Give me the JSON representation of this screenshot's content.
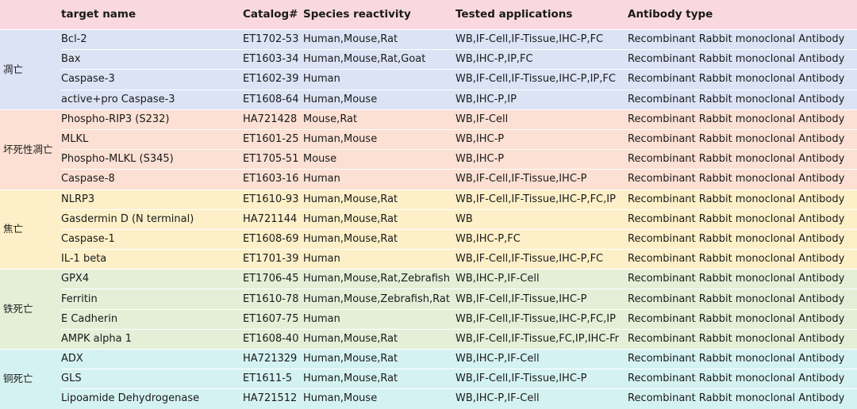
{
  "headers": [
    "",
    "target name",
    "Catalog#",
    "Species reactivity",
    "Tested applications",
    "Antibody type"
  ],
  "colors": {
    "header": "#f9d9df",
    "groups": [
      "#dbe3f5",
      "#fbe0d3",
      "#fdf0c8",
      "#e4efd8",
      "#d5f2f2"
    ]
  },
  "groups": [
    {
      "name": "凋亡",
      "rows": [
        [
          "Bcl-2",
          "ET1702-53",
          "Human,Mouse,Rat",
          "WB,IF-Cell,IF-Tissue,IHC-P,FC",
          "Recombinant Rabbit monoclonal Antibody"
        ],
        [
          "Bax",
          "ET1603-34",
          "Human,Mouse,Rat,Goat",
          "WB,IHC-P,IP,FC",
          "Recombinant Rabbit monoclonal Antibody"
        ],
        [
          "Caspase-3",
          "ET1602-39",
          "Human",
          "WB,IF-Cell,IF-Tissue,IHC-P,IP,FC",
          "Recombinant Rabbit monoclonal Antibody"
        ],
        [
          "active+pro Caspase-3",
          "ET1608-64",
          "Human,Mouse",
          "WB,IHC-P,IP",
          "Recombinant Rabbit monoclonal Antibody"
        ]
      ]
    },
    {
      "name": "坏死性凋亡",
      "rows": [
        [
          "Phospho-RIP3 (S232)",
          "HA721428",
          "Mouse,Rat",
          "WB,IF-Cell",
          "Recombinant Rabbit monoclonal Antibody"
        ],
        [
          "MLKL",
          "ET1601-25",
          "Human,Mouse",
          "WB,IHC-P",
          "Recombinant Rabbit monoclonal Antibody"
        ],
        [
          "Phospho-MLKL (S345)",
          "ET1705-51",
          "Mouse",
          "WB,IHC-P",
          "Recombinant Rabbit monoclonal Antibody"
        ],
        [
          "Caspase-8",
          "ET1603-16",
          "Human",
          "WB,IF-Cell,IF-Tissue,IHC-P",
          "Recombinant Rabbit monoclonal Antibody"
        ]
      ]
    },
    {
      "name": "焦亡",
      "rows": [
        [
          "NLRP3",
          "ET1610-93",
          "Human,Mouse,Rat",
          "WB,IF-Cell,IF-Tissue,IHC-P,FC,IP",
          "Recombinant Rabbit monoclonal Antibody"
        ],
        [
          "Gasdermin D (N terminal)",
          "HA721144",
          "Human,Mouse,Rat",
          "WB",
          "Recombinant Rabbit monoclonal Antibody"
        ],
        [
          "Caspase-1",
          "ET1608-69",
          "Human,Mouse,Rat",
          "WB,IHC-P,FC",
          "Recombinant Rabbit monoclonal Antibody"
        ],
        [
          "IL-1 beta",
          "ET1701-39",
          "Human",
          "WB,IF-Cell,IF-Tissue,IHC-P,FC",
          "Recombinant Rabbit monoclonal Antibody"
        ]
      ]
    },
    {
      "name": "铁死亡",
      "rows": [
        [
          "GPX4",
          "ET1706-45",
          "Human,Mouse,Rat,Zebrafish",
          "WB,IHC-P,IF-Cell",
          "Recombinant Rabbit monoclonal Antibody"
        ],
        [
          "Ferritin",
          "ET1610-78",
          "Human,Mouse,Zebrafish,Rat",
          "WB,IF-Cell,IF-Tissue,IHC-P",
          "Recombinant Rabbit monoclonal Antibody"
        ],
        [
          "E Cadherin",
          "ET1607-75",
          "Human",
          "WB,IF-Cell,IF-Tissue,IHC-P,FC,IP",
          "Recombinant Rabbit monoclonal Antibody"
        ],
        [
          "AMPK alpha 1",
          "ET1608-40",
          "Human,Mouse,Rat",
          "WB,IF-Cell,IF-Tissue,FC,IP,IHC-Fr",
          "Recombinant Rabbit monoclonal Antibody"
        ]
      ]
    },
    {
      "name": "铜死亡",
      "rows": [
        [
          "ADX",
          "HA721329",
          "Human,Mouse,Rat",
          "WB,IHC-P,IF-Cell",
          "Recombinant Rabbit monoclonal Antibody"
        ],
        [
          "GLS",
          "ET1611-5",
          "Human,Mouse,Rat",
          "WB,IF-Cell,IF-Tissue,IHC-P",
          "Recombinant Rabbit monoclonal Antibody"
        ],
        [
          "Lipoamide Dehydrogenase",
          "HA721512",
          "Human,Mouse",
          "WB,IHC-P,IF-Cell",
          "Recombinant Rabbit monoclonal Antibody"
        ]
      ]
    }
  ]
}
